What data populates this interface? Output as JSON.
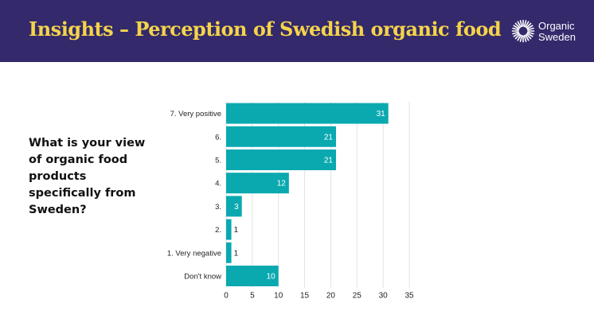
{
  "header": {
    "title": "Insights – Perception of Swedish organic food",
    "logo_line1": "Organic",
    "logo_line2": "Sweden",
    "background": "#33296b",
    "title_color": "#f5d44a"
  },
  "question": "What is your view of organic food products specifically from Sweden?",
  "chart_data": {
    "type": "bar",
    "orientation": "horizontal",
    "categories": [
      "7. Very positive",
      "6.",
      "5.",
      "4.",
      "3.",
      "2.",
      "1. Very negative",
      "Don't know"
    ],
    "values": [
      31,
      21,
      21,
      12,
      3,
      1,
      1,
      10
    ],
    "xlim": [
      0,
      35
    ],
    "xticks": [
      0,
      5,
      10,
      15,
      20,
      25,
      30,
      35
    ],
    "grid": true,
    "bar_color": "#0aa9b0",
    "title": "",
    "xlabel": "",
    "ylabel": ""
  }
}
